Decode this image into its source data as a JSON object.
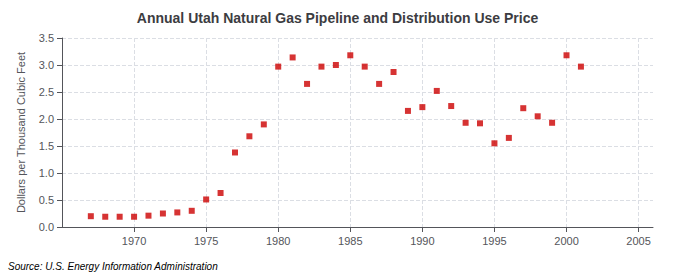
{
  "chart_data": {
    "type": "scatter",
    "title": "Annual Utah Natural Gas Pipeline and Distribution Use Price",
    "ylabel": "Dollars per Thousand Cubic Feet",
    "annotation": "Source: U.S. Energy Information Administration",
    "x": [
      1967,
      1968,
      1969,
      1970,
      1971,
      1972,
      1973,
      1974,
      1975,
      1976,
      1977,
      1978,
      1979,
      1980,
      1981,
      1982,
      1983,
      1984,
      1985,
      1986,
      1987,
      1988,
      1989,
      1990,
      1991,
      1992,
      1993,
      1994,
      1995,
      1996,
      1997,
      1998,
      1999,
      2000,
      2001
    ],
    "values": [
      0.2,
      0.19,
      0.19,
      0.19,
      0.21,
      0.25,
      0.27,
      0.3,
      0.51,
      0.63,
      1.38,
      1.68,
      1.9,
      2.97,
      3.14,
      2.65,
      2.97,
      3.0,
      3.18,
      2.97,
      2.65,
      2.87,
      2.15,
      2.22,
      2.52,
      2.24,
      1.93,
      1.92,
      1.55,
      1.65,
      2.2,
      2.05,
      1.93,
      3.18,
      2.97
    ],
    "color": "#cc0000",
    "marker": "square",
    "xlim": [
      1965,
      2006
    ],
    "xticks": [
      1970,
      1975,
      1980,
      1985,
      1990,
      1995,
      2000,
      2005
    ],
    "ylim": [
      0,
      3.5
    ],
    "yticks": [
      {
        "value": 0,
        "label": "0.0"
      },
      0.5,
      {
        "value": 1,
        "label": "1.0"
      },
      1.5,
      {
        "value": 2,
        "label": "2.0"
      },
      2.5,
      {
        "value": 3,
        "label": "3.0"
      },
      3.5
    ],
    "grid": true
  }
}
